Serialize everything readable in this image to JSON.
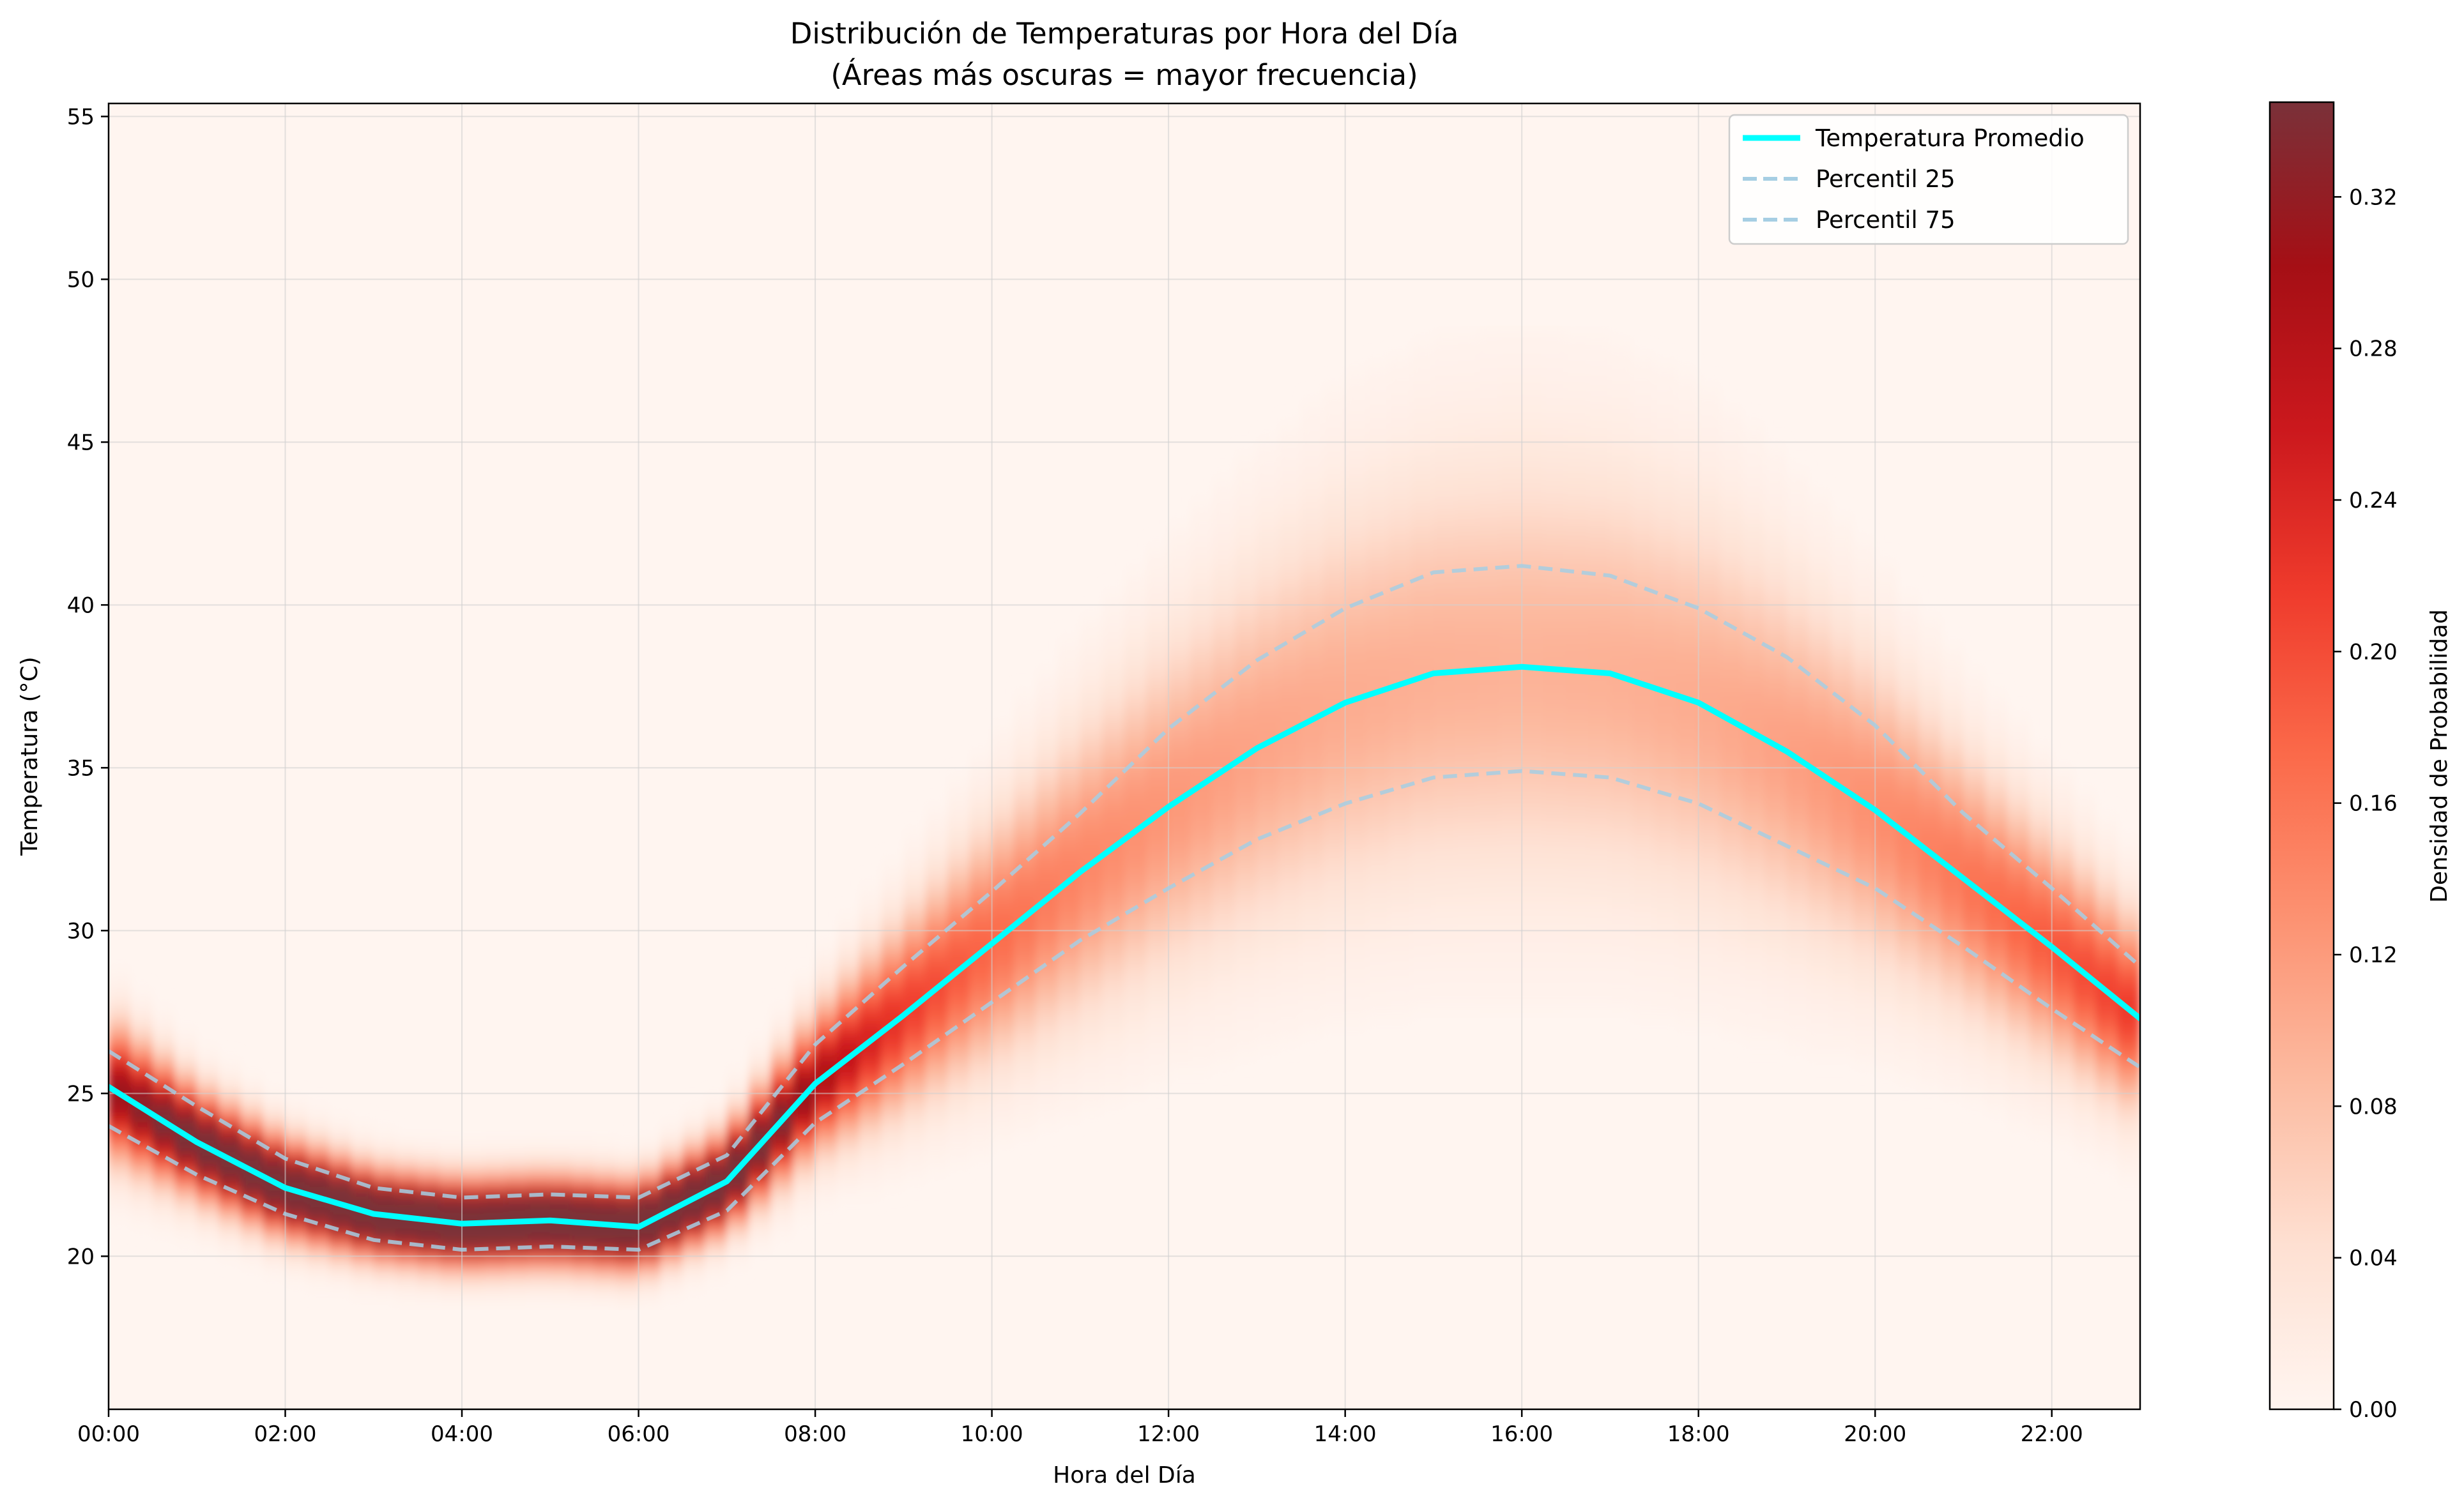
{
  "chart_data": {
    "type": "heatmap",
    "title": "Distribución de Temperaturas por Hora del Día",
    "subtitle": "(Áreas más oscuras = mayor frecuencia)",
    "xlabel": "Hora del Día",
    "ylabel": "Temperatura (°C)",
    "colorbar_label": "Densidad de Probabilidad",
    "xlim": [
      0,
      23
    ],
    "ylim": [
      15.3,
      55.4
    ],
    "grid": true,
    "legend_position": "top-right",
    "x": [
      0,
      1,
      2,
      3,
      4,
      5,
      6,
      7,
      8,
      9,
      10,
      11,
      12,
      13,
      14,
      15,
      16,
      17,
      18,
      19,
      20,
      21,
      22,
      23
    ],
    "x_ticks": [
      0,
      2,
      4,
      6,
      8,
      10,
      12,
      14,
      16,
      18,
      20,
      22
    ],
    "x_tick_labels": [
      "00:00",
      "02:00",
      "04:00",
      "06:00",
      "08:00",
      "10:00",
      "12:00",
      "14:00",
      "16:00",
      "18:00",
      "20:00",
      "22:00"
    ],
    "y_ticks": [
      20,
      25,
      30,
      35,
      40,
      45,
      50,
      55
    ],
    "y_tick_labels": [
      "20",
      "25",
      "30",
      "35",
      "40",
      "45",
      "50",
      "55"
    ],
    "colorbar_range": [
      0,
      0.345
    ],
    "colorbar_ticks": [
      0,
      0.04,
      0.08,
      0.12,
      0.16,
      0.2,
      0.24,
      0.28,
      0.32
    ],
    "colorbar_tick_labels": [
      "0.00",
      "0.04",
      "0.08",
      "0.12",
      "0.16",
      "0.20",
      "0.24",
      "0.28",
      "0.32"
    ],
    "density_spread_sd": [
      1.3,
      1.0,
      0.9,
      0.8,
      0.8,
      0.8,
      0.8,
      0.9,
      1.3,
      1.8,
      2.3,
      2.8,
      3.2,
      3.6,
      3.9,
      4.1,
      4.2,
      4.1,
      3.9,
      3.5,
      3.0,
      2.5,
      2.1,
      1.8
    ],
    "series": [
      {
        "name": "Temperatura Promedio",
        "color": "#00ffff",
        "style": "solid",
        "values": [
          25.2,
          23.5,
          22.1,
          21.3,
          21.0,
          21.1,
          20.9,
          22.3,
          25.3,
          27.4,
          29.6,
          31.8,
          33.8,
          35.6,
          37.0,
          37.9,
          38.1,
          37.9,
          37.0,
          35.5,
          33.7,
          31.6,
          29.5,
          27.3
        ]
      },
      {
        "name": "Percentil 25",
        "color": "#a6cee3",
        "style": "dashed",
        "values": [
          24.0,
          22.5,
          21.3,
          20.5,
          20.2,
          20.3,
          20.2,
          21.4,
          24.1,
          25.9,
          27.8,
          29.7,
          31.3,
          32.8,
          33.9,
          34.7,
          34.9,
          34.7,
          33.9,
          32.6,
          31.3,
          29.5,
          27.6,
          25.8
        ]
      },
      {
        "name": "Percentil 75",
        "color": "#a6cee3",
        "style": "dashed",
        "values": [
          26.3,
          24.6,
          23.0,
          22.1,
          21.8,
          21.9,
          21.8,
          23.1,
          26.5,
          28.9,
          31.2,
          33.6,
          36.2,
          38.3,
          39.9,
          41.0,
          41.2,
          40.9,
          39.9,
          38.4,
          36.3,
          33.6,
          31.3,
          28.9
        ]
      }
    ]
  },
  "colors": {
    "cmap": [
      "#fff5f0",
      "#fee0d2",
      "#fcbba1",
      "#fc9272",
      "#fb6a4a",
      "#ef3b2c",
      "#cb181d",
      "#a50f15",
      "#7a3139"
    ],
    "grid": "#d0d0d0"
  }
}
